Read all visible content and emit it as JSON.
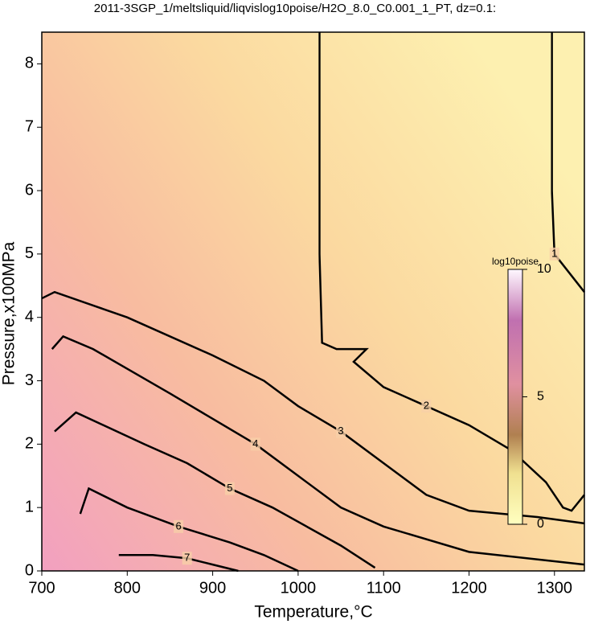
{
  "chart_data": {
    "type": "contour",
    "title": "2011-3SGP_1/meltsliquid/liqvislog10poise/H2O_8.0_C0.001_1_PT, dz=0.1:",
    "xlabel": "Temperature,°C",
    "ylabel": "Pressure,x100MPa",
    "xlim": [
      700,
      1335
    ],
    "ylim": [
      0,
      8.5
    ],
    "xticks": [
      700,
      800,
      900,
      1000,
      1100,
      1200,
      1300
    ],
    "yticks": [
      0,
      1,
      2,
      3,
      4,
      5,
      6,
      7,
      8
    ],
    "contours": [
      {
        "level": 1,
        "x": [
          1297,
          1297,
          1300,
          1335
        ],
        "y": [
          8.5,
          6.0,
          5.0,
          4.4
        ]
      },
      {
        "level": 2,
        "x": [
          1025,
          1025,
          1028,
          1045,
          1080,
          1065,
          1100,
          1150,
          1200,
          1250,
          1290,
          1310,
          1320,
          1335
        ],
        "y": [
          8.5,
          5.0,
          3.6,
          3.5,
          3.5,
          3.3,
          2.9,
          2.6,
          2.3,
          1.9,
          1.4,
          1.0,
          0.95,
          1.2
        ]
      },
      {
        "level": 3,
        "x": [
          700,
          715,
          800,
          900,
          960,
          1000,
          1050,
          1100,
          1150,
          1200,
          1280,
          1335
        ],
        "y": [
          4.3,
          4.4,
          4.0,
          3.4,
          3.0,
          2.6,
          2.2,
          1.7,
          1.2,
          0.95,
          0.85,
          0.75
        ]
      },
      {
        "level": 4,
        "x": [
          712,
          725,
          760,
          850,
          900,
          950,
          1000,
          1050,
          1100,
          1200,
          1335
        ],
        "y": [
          3.5,
          3.7,
          3.5,
          2.8,
          2.4,
          2.0,
          1.5,
          1.0,
          0.7,
          0.3,
          0.1
        ]
      },
      {
        "level": 5,
        "x": [
          715,
          740,
          820,
          870,
          920,
          970,
          1010,
          1050,
          1090
        ],
        "y": [
          2.2,
          2.5,
          2.0,
          1.7,
          1.3,
          1.0,
          0.7,
          0.4,
          0.05
        ]
      },
      {
        "level": 6,
        "x": [
          745,
          755,
          800,
          860,
          920,
          960,
          1000
        ],
        "y": [
          0.9,
          1.3,
          1.0,
          0.7,
          0.45,
          0.25,
          0.0
        ]
      },
      {
        "level": 7,
        "x": [
          790,
          830,
          870,
          900,
          930
        ],
        "y": [
          0.25,
          0.25,
          0.2,
          0.1,
          0.0
        ]
      }
    ],
    "colorbar": {
      "label": "log10poise",
      "lim": [
        0,
        10
      ],
      "ticks": [
        0,
        5,
        10
      ]
    }
  }
}
